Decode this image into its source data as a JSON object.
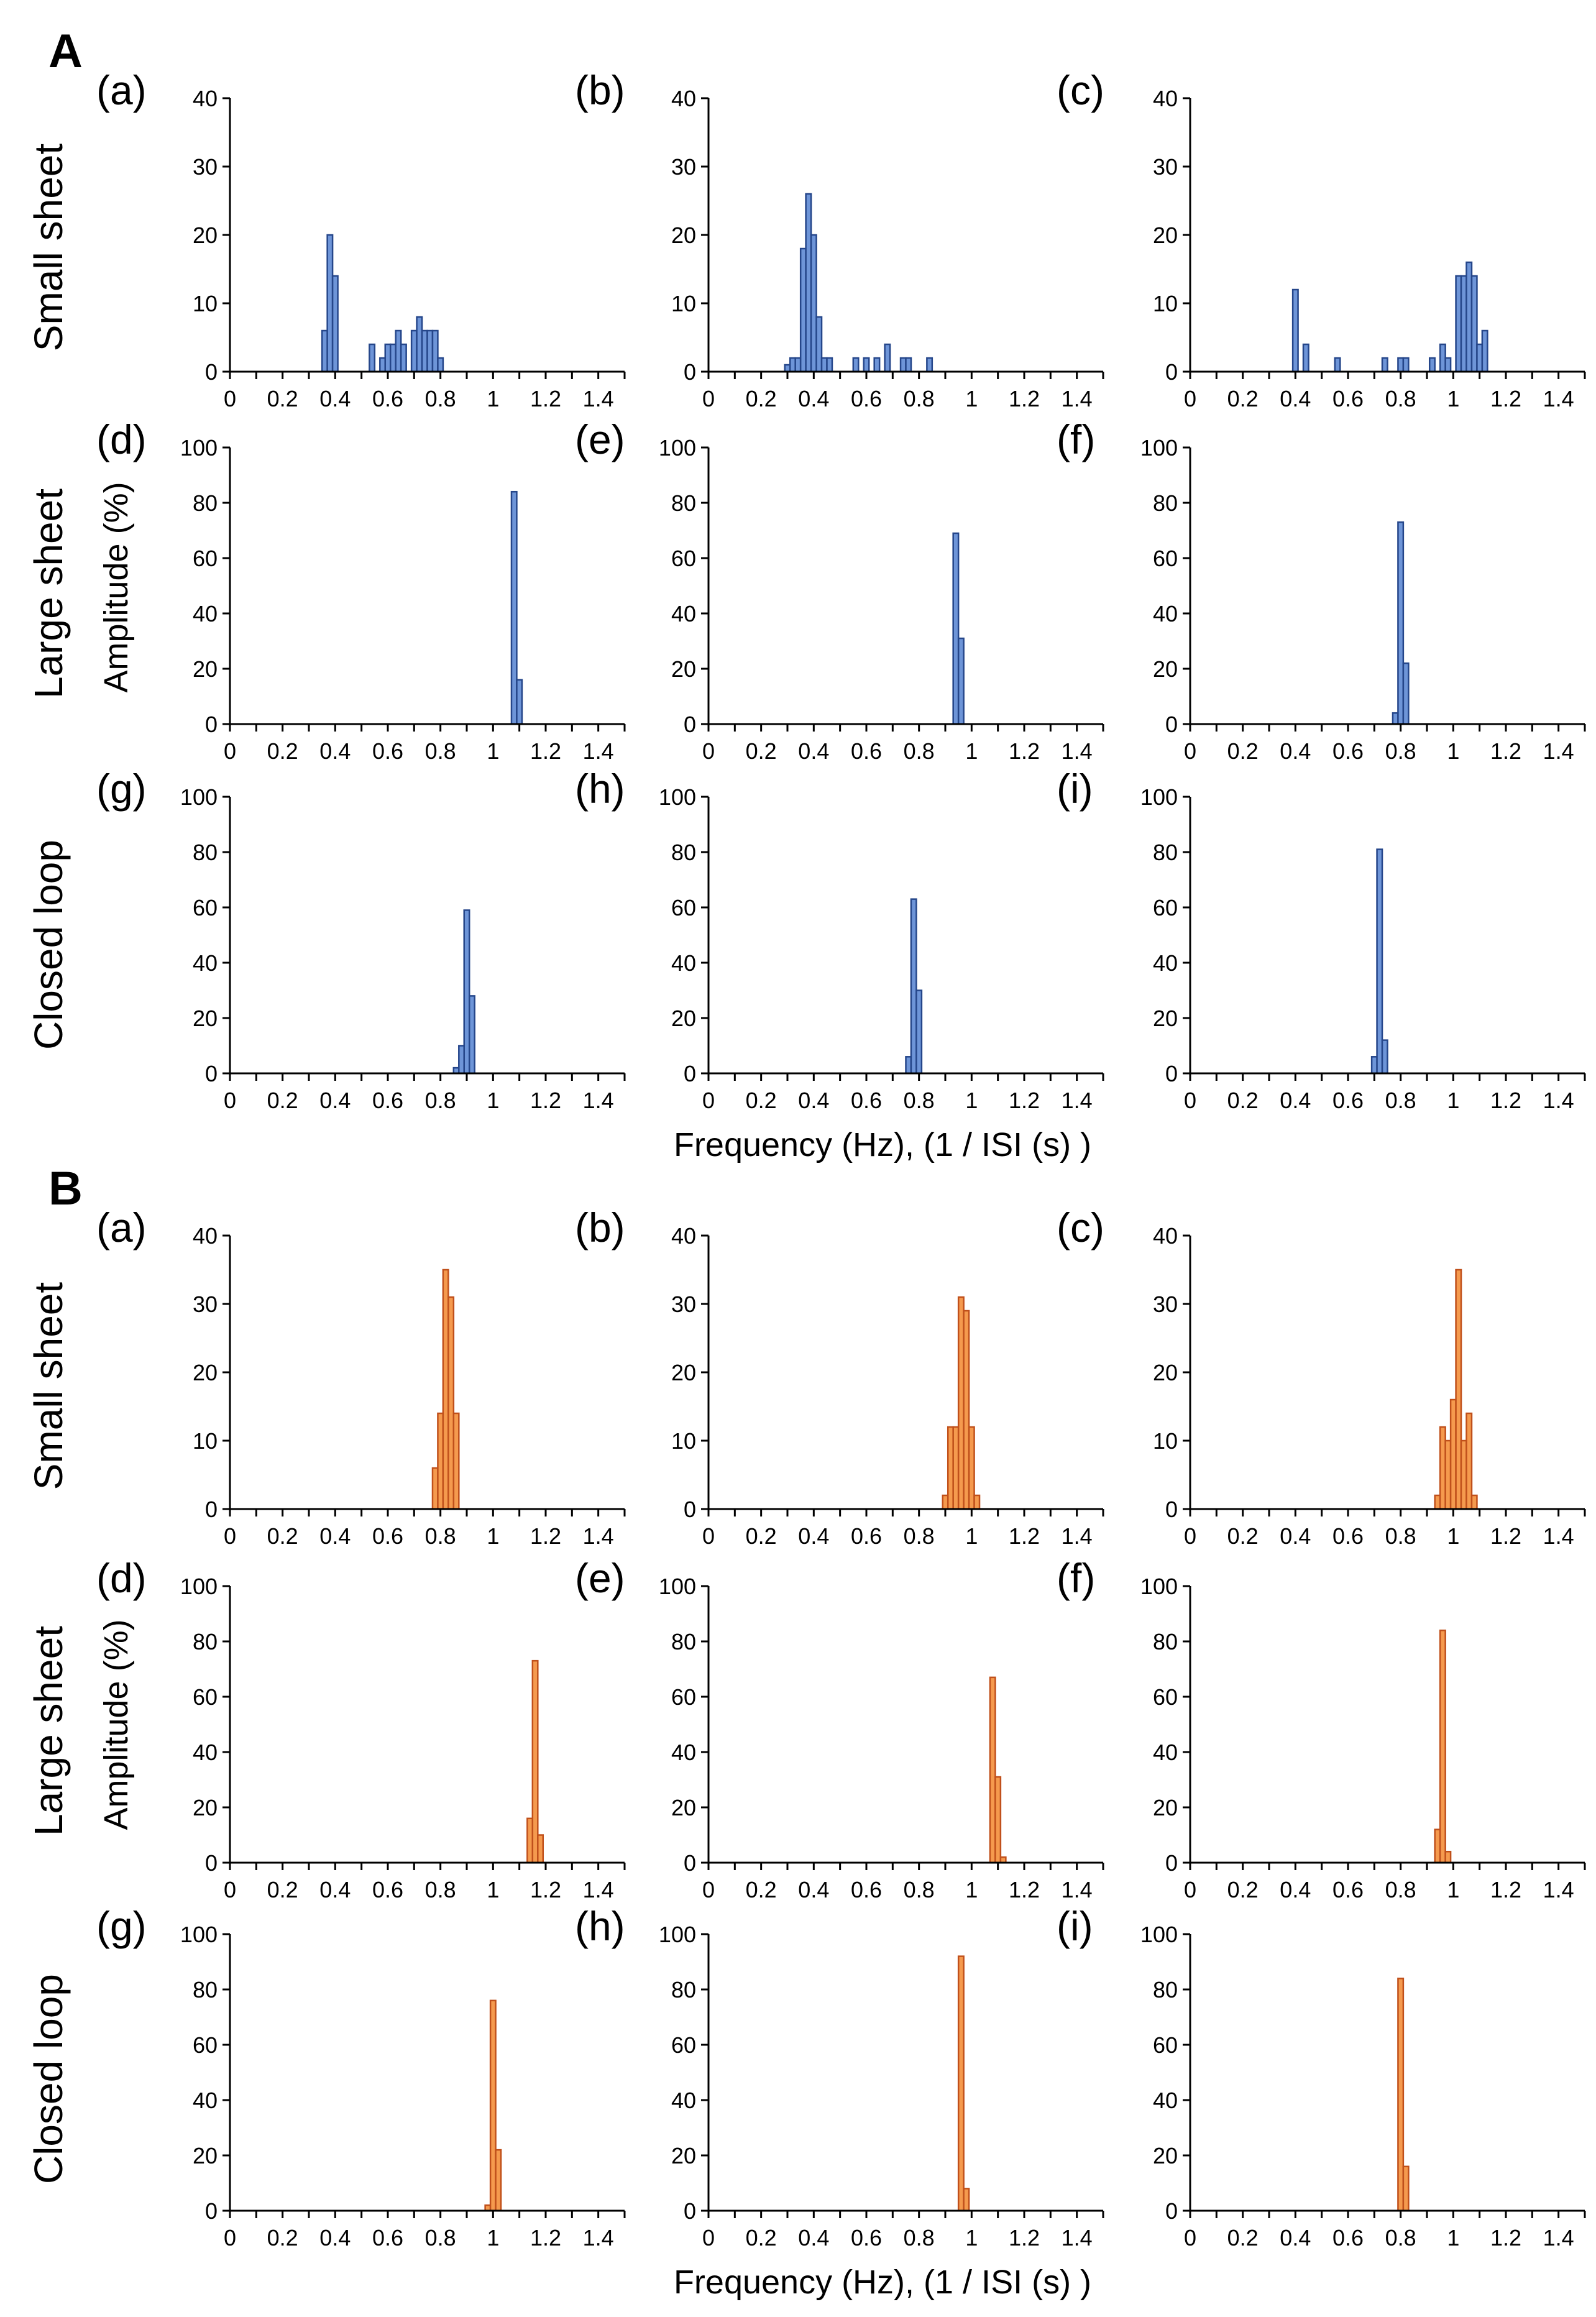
{
  "figure": {
    "sections": [
      "A",
      "B"
    ],
    "row_labels": [
      "Small sheet",
      "Large sheet",
      "Closed loop"
    ],
    "ylabel": "Amplitude (%)",
    "xlabel": "Frequency (Hz), (1 / ISI (s) )",
    "colors": {
      "A": {
        "fill": "#6e95d8",
        "stroke": "#25468a"
      },
      "B": {
        "fill": "#f59a4e",
        "stroke": "#c0501b"
      }
    }
  },
  "chart_data": [
    {
      "section": "A",
      "panel": "(a)",
      "row": "Small sheet",
      "type": "bar",
      "xlim": [
        0,
        1.5
      ],
      "ylim": [
        0,
        40
      ],
      "yticks": [
        0,
        10,
        20,
        30,
        40
      ],
      "xticks": [
        0,
        0.2,
        0.4,
        0.6,
        0.8,
        1,
        1.2,
        1.4
      ],
      "x": [
        0.36,
        0.38,
        0.4,
        0.54,
        0.58,
        0.6,
        0.62,
        0.64,
        0.66,
        0.7,
        0.72,
        0.74,
        0.76,
        0.78,
        0.8
      ],
      "values": [
        6,
        20,
        14,
        4,
        2,
        4,
        4,
        6,
        4,
        6,
        8,
        6,
        6,
        6,
        2
      ]
    },
    {
      "section": "A",
      "panel": "(b)",
      "row": "Small sheet",
      "type": "bar",
      "xlim": [
        0,
        1.5
      ],
      "ylim": [
        0,
        40
      ],
      "yticks": [
        0,
        10,
        20,
        30,
        40
      ],
      "xticks": [
        0,
        0.2,
        0.4,
        0.6,
        0.8,
        1,
        1.2,
        1.4
      ],
      "x": [
        0.3,
        0.32,
        0.34,
        0.36,
        0.38,
        0.4,
        0.42,
        0.44,
        0.46,
        0.56,
        0.6,
        0.64,
        0.68,
        0.74,
        0.76,
        0.84
      ],
      "values": [
        1,
        2,
        2,
        18,
        26,
        20,
        8,
        2,
        2,
        2,
        2,
        2,
        4,
        2,
        2,
        2
      ]
    },
    {
      "section": "A",
      "panel": "(c)",
      "row": "Small sheet",
      "type": "bar",
      "xlim": [
        0,
        1.5
      ],
      "ylim": [
        0,
        40
      ],
      "yticks": [
        0,
        10,
        20,
        30,
        40
      ],
      "xticks": [
        0,
        0.2,
        0.4,
        0.6,
        0.8,
        1,
        1.2,
        1.4
      ],
      "x": [
        0.4,
        0.44,
        0.56,
        0.74,
        0.8,
        0.82,
        0.92,
        0.96,
        0.98,
        1.02,
        1.04,
        1.06,
        1.08,
        1.1,
        1.12
      ],
      "values": [
        12,
        4,
        2,
        2,
        2,
        2,
        2,
        4,
        2,
        14,
        14,
        16,
        14,
        4,
        6
      ]
    },
    {
      "section": "A",
      "panel": "(d)",
      "row": "Large sheet",
      "type": "bar",
      "xlim": [
        0,
        1.5
      ],
      "ylim": [
        0,
        100
      ],
      "yticks": [
        0,
        20,
        40,
        60,
        80,
        100
      ],
      "xticks": [
        0,
        0.2,
        0.4,
        0.6,
        0.8,
        1,
        1.2,
        1.4
      ],
      "x": [
        1.08,
        1.1
      ],
      "values": [
        84,
        16
      ]
    },
    {
      "section": "A",
      "panel": "(e)",
      "row": "Large sheet",
      "type": "bar",
      "xlim": [
        0,
        1.5
      ],
      "ylim": [
        0,
        100
      ],
      "yticks": [
        0,
        20,
        40,
        60,
        80,
        100
      ],
      "xticks": [
        0,
        0.2,
        0.4,
        0.6,
        0.8,
        1,
        1.2,
        1.4
      ],
      "x": [
        0.94,
        0.96
      ],
      "values": [
        69,
        31
      ]
    },
    {
      "section": "A",
      "panel": "(f)",
      "row": "Large sheet",
      "type": "bar",
      "xlim": [
        0,
        1.5
      ],
      "ylim": [
        0,
        100
      ],
      "yticks": [
        0,
        20,
        40,
        60,
        80,
        100
      ],
      "xticks": [
        0,
        0.2,
        0.4,
        0.6,
        0.8,
        1,
        1.2,
        1.4
      ],
      "x": [
        0.78,
        0.8,
        0.82
      ],
      "values": [
        4,
        73,
        22
      ]
    },
    {
      "section": "A",
      "panel": "(g)",
      "row": "Closed loop",
      "type": "bar",
      "xlim": [
        0,
        1.5
      ],
      "ylim": [
        0,
        100
      ],
      "yticks": [
        0,
        20,
        40,
        60,
        80,
        100
      ],
      "xticks": [
        0,
        0.2,
        0.4,
        0.6,
        0.8,
        1,
        1.2,
        1.4
      ],
      "x": [
        0.86,
        0.88,
        0.9,
        0.92
      ],
      "values": [
        2,
        10,
        59,
        28
      ]
    },
    {
      "section": "A",
      "panel": "(h)",
      "row": "Closed loop",
      "type": "bar",
      "xlim": [
        0,
        1.5
      ],
      "ylim": [
        0,
        100
      ],
      "yticks": [
        0,
        20,
        40,
        60,
        80,
        100
      ],
      "xticks": [
        0,
        0.2,
        0.4,
        0.6,
        0.8,
        1,
        1.2,
        1.4
      ],
      "x": [
        0.76,
        0.78,
        0.8
      ],
      "values": [
        6,
        63,
        30
      ]
    },
    {
      "section": "A",
      "panel": "(i)",
      "row": "Closed loop",
      "type": "bar",
      "xlim": [
        0,
        1.5
      ],
      "ylim": [
        0,
        100
      ],
      "yticks": [
        0,
        20,
        40,
        60,
        80,
        100
      ],
      "xticks": [
        0,
        0.2,
        0.4,
        0.6,
        0.8,
        1,
        1.2,
        1.4
      ],
      "x": [
        0.7,
        0.72,
        0.74
      ],
      "values": [
        6,
        81,
        12
      ]
    },
    {
      "section": "B",
      "panel": "(a)",
      "row": "Small sheet",
      "type": "bar",
      "xlim": [
        0,
        1.5
      ],
      "ylim": [
        0,
        40
      ],
      "yticks": [
        0,
        10,
        20,
        30,
        40
      ],
      "xticks": [
        0,
        0.2,
        0.4,
        0.6,
        0.8,
        1,
        1.2,
        1.4
      ],
      "x": [
        0.78,
        0.8,
        0.82,
        0.84,
        0.86
      ],
      "values": [
        6,
        14,
        35,
        31,
        14
      ]
    },
    {
      "section": "B",
      "panel": "(b)",
      "row": "Small sheet",
      "type": "bar",
      "xlim": [
        0,
        1.5
      ],
      "ylim": [
        0,
        40
      ],
      "yticks": [
        0,
        10,
        20,
        30,
        40
      ],
      "xticks": [
        0,
        0.2,
        0.4,
        0.6,
        0.8,
        1,
        1.2,
        1.4
      ],
      "x": [
        0.9,
        0.92,
        0.94,
        0.96,
        0.98,
        1.0,
        1.02
      ],
      "values": [
        2,
        12,
        12,
        31,
        29,
        12,
        2
      ]
    },
    {
      "section": "B",
      "panel": "(c)",
      "row": "Small sheet",
      "type": "bar",
      "xlim": [
        0,
        1.5
      ],
      "ylim": [
        0,
        40
      ],
      "yticks": [
        0,
        10,
        20,
        30,
        40
      ],
      "xticks": [
        0,
        0.2,
        0.4,
        0.6,
        0.8,
        1,
        1.2,
        1.4
      ],
      "x": [
        0.94,
        0.96,
        0.98,
        1.0,
        1.02,
        1.04,
        1.06,
        1.08
      ],
      "values": [
        2,
        12,
        10,
        16,
        35,
        10,
        14,
        2
      ]
    },
    {
      "section": "B",
      "panel": "(d)",
      "row": "Large sheet",
      "type": "bar",
      "xlim": [
        0,
        1.5
      ],
      "ylim": [
        0,
        100
      ],
      "yticks": [
        0,
        20,
        40,
        60,
        80,
        100
      ],
      "xticks": [
        0,
        0.2,
        0.4,
        0.6,
        0.8,
        1,
        1.2,
        1.4
      ],
      "x": [
        1.14,
        1.16,
        1.18
      ],
      "values": [
        16,
        73,
        10
      ]
    },
    {
      "section": "B",
      "panel": "(e)",
      "row": "Large sheet",
      "type": "bar",
      "xlim": [
        0,
        1.5
      ],
      "ylim": [
        0,
        100
      ],
      "yticks": [
        0,
        20,
        40,
        60,
        80,
        100
      ],
      "xticks": [
        0,
        0.2,
        0.4,
        0.6,
        0.8,
        1,
        1.2,
        1.4
      ],
      "x": [
        1.08,
        1.1,
        1.12
      ],
      "values": [
        67,
        31,
        2
      ]
    },
    {
      "section": "B",
      "panel": "(f)",
      "row": "Large sheet",
      "type": "bar",
      "xlim": [
        0,
        1.5
      ],
      "ylim": [
        0,
        100
      ],
      "yticks": [
        0,
        20,
        40,
        60,
        80,
        100
      ],
      "xticks": [
        0,
        0.2,
        0.4,
        0.6,
        0.8,
        1,
        1.2,
        1.4
      ],
      "x": [
        0.94,
        0.96,
        0.98
      ],
      "values": [
        12,
        84,
        4
      ]
    },
    {
      "section": "B",
      "panel": "(g)",
      "row": "Closed loop",
      "type": "bar",
      "xlim": [
        0,
        1.5
      ],
      "ylim": [
        0,
        100
      ],
      "yticks": [
        0,
        20,
        40,
        60,
        80,
        100
      ],
      "xticks": [
        0,
        0.2,
        0.4,
        0.6,
        0.8,
        1,
        1.2,
        1.4
      ],
      "x": [
        0.98,
        1.0,
        1.02
      ],
      "values": [
        2,
        76,
        22
      ]
    },
    {
      "section": "B",
      "panel": "(h)",
      "row": "Closed loop",
      "type": "bar",
      "xlim": [
        0,
        1.5
      ],
      "ylim": [
        0,
        100
      ],
      "yticks": [
        0,
        20,
        40,
        60,
        80,
        100
      ],
      "xticks": [
        0,
        0.2,
        0.4,
        0.6,
        0.8,
        1,
        1.2,
        1.4
      ],
      "x": [
        0.96,
        0.98
      ],
      "values": [
        92,
        8
      ]
    },
    {
      "section": "B",
      "panel": "(i)",
      "row": "Closed loop",
      "type": "bar",
      "xlim": [
        0,
        1.5
      ],
      "ylim": [
        0,
        100
      ],
      "yticks": [
        0,
        20,
        40,
        60,
        80,
        100
      ],
      "xticks": [
        0,
        0.2,
        0.4,
        0.6,
        0.8,
        1,
        1.2,
        1.4
      ],
      "x": [
        0.8,
        0.82
      ],
      "values": [
        84,
        16
      ]
    }
  ]
}
